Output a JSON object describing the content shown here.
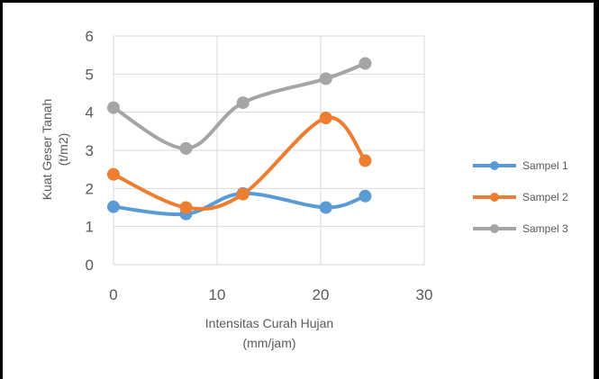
{
  "chart_data": {
    "type": "scatter",
    "xlabel_lines": [
      "Intensitas Curah Hujan",
      "(mm/jam)"
    ],
    "ylabel_lines": [
      "Kuat Geser Tanah",
      "(t/m2)"
    ],
    "xlim": [
      0,
      30
    ],
    "ylim": [
      0,
      6
    ],
    "x_ticks": [
      "0",
      "10",
      "20",
      "30"
    ],
    "y_ticks": [
      "0",
      "1",
      "2",
      "3",
      "4",
      "5",
      "6"
    ],
    "grid": true,
    "legend_position": "right",
    "smooth_lines": true,
    "x": [
      0,
      7,
      12.5,
      20.5,
      24.3
    ],
    "series": [
      {
        "name": "Sampel 1",
        "color": "#5B9BD5",
        "values": [
          1.52,
          1.33,
          1.87,
          1.5,
          1.8
        ]
      },
      {
        "name": "Sampel 2",
        "color": "#ED7D31",
        "values": [
          2.37,
          1.5,
          1.85,
          3.85,
          2.73
        ]
      },
      {
        "name": "Sampel 3",
        "color": "#A5A5A5",
        "values": [
          4.12,
          3.05,
          4.25,
          4.88,
          5.28
        ]
      }
    ]
  }
}
